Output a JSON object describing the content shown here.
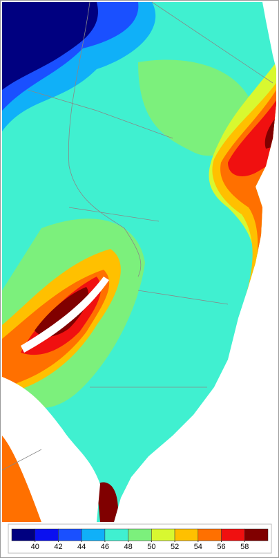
{
  "legend": {
    "colors": [
      "#000080",
      "#0a10f0",
      "#1a50ff",
      "#10b0f8",
      "#40f0d0",
      "#7cf07c",
      "#d8f830",
      "#ffc000",
      "#ff7000",
      "#f01010",
      "#800000"
    ],
    "ticks": [
      40,
      42,
      44,
      46,
      48,
      50,
      52,
      54,
      56,
      58
    ]
  }
}
